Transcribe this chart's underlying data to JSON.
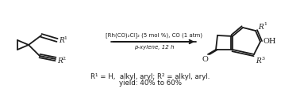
{
  "bg_color": "#ffffff",
  "line_color": "#1a1a1a",
  "text_color": "#1a1a1a",
  "fig_width": 3.78,
  "fig_height": 1.14,
  "dpi": 100,
  "reaction_line1": "[Rh(CO)₂Cl]₂ (5 mol %), CO (1 atm)",
  "reaction_line2": "p-xylene, 12 h",
  "caption_line1": "R¹ = H,  alkyl, aryl; R² = alkyl, aryl.",
  "caption_line2": "yield: 40% to 60%",
  "lw": 1.3
}
